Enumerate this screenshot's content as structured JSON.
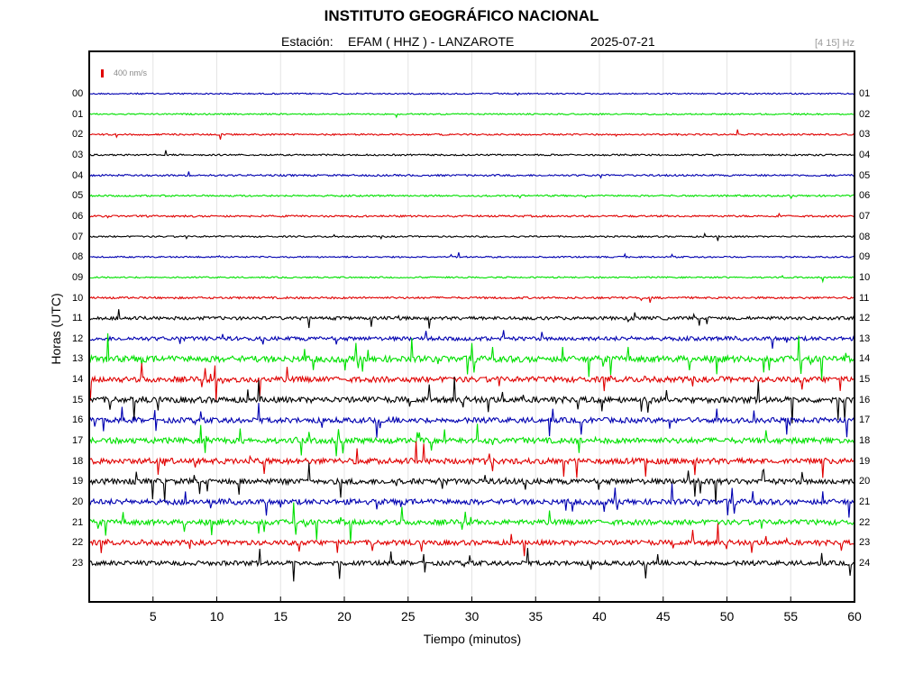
{
  "chart_data": {
    "type": "line",
    "title": "INSTITUTO GEOGRÁFICO NACIONAL",
    "station_label": "Estación:",
    "station": "EFAM ( HHZ ) - LANZAROTE",
    "date": "2025-07-21",
    "filter": "[4 15] Hz",
    "scale_label": "400 nm/s",
    "xlabel": "Tiempo (minutos)",
    "ylabel": "Horas (UTC)",
    "xlim": [
      0,
      60
    ],
    "x_ticks": [
      5,
      10,
      15,
      20,
      25,
      30,
      35,
      40,
      45,
      50,
      55,
      60
    ],
    "grid": true,
    "trace_colors": [
      "#0000b0",
      "#00e000",
      "#e00000",
      "#000000"
    ],
    "series": [
      {
        "left": "00",
        "right": "01",
        "activity": 0.05
      },
      {
        "left": "01",
        "right": "02",
        "activity": 0.05
      },
      {
        "left": "02",
        "right": "03",
        "activity": 0.08
      },
      {
        "left": "03",
        "right": "04",
        "activity": 0.08
      },
      {
        "left": "04",
        "right": "05",
        "activity": 0.12
      },
      {
        "left": "05",
        "right": "06",
        "activity": 0.1
      },
      {
        "left": "06",
        "right": "07",
        "activity": 0.12
      },
      {
        "left": "07",
        "right": "08",
        "activity": 0.08
      },
      {
        "left": "08",
        "right": "09",
        "activity": 0.06
      },
      {
        "left": "09",
        "right": "10",
        "activity": 0.06
      },
      {
        "left": "10",
        "right": "11",
        "activity": 0.15
      },
      {
        "left": "11",
        "right": "12",
        "activity": 0.35
      },
      {
        "left": "12",
        "right": "13",
        "activity": 0.45
      },
      {
        "left": "13",
        "right": "14",
        "activity": 0.8
      },
      {
        "left": "14",
        "right": "15",
        "activity": 0.7
      },
      {
        "left": "15",
        "right": "16",
        "activity": 0.75
      },
      {
        "left": "16",
        "right": "17",
        "activity": 0.65
      },
      {
        "left": "17",
        "right": "18",
        "activity": 0.7
      },
      {
        "left": "18",
        "right": "19",
        "activity": 0.72
      },
      {
        "left": "19",
        "right": "20",
        "activity": 0.7
      },
      {
        "left": "20",
        "right": "21",
        "activity": 0.68
      },
      {
        "left": "21",
        "right": "22",
        "activity": 0.65
      },
      {
        "left": "22",
        "right": "23",
        "activity": 0.6
      },
      {
        "left": "23",
        "right": "24",
        "activity": 0.55
      }
    ]
  }
}
